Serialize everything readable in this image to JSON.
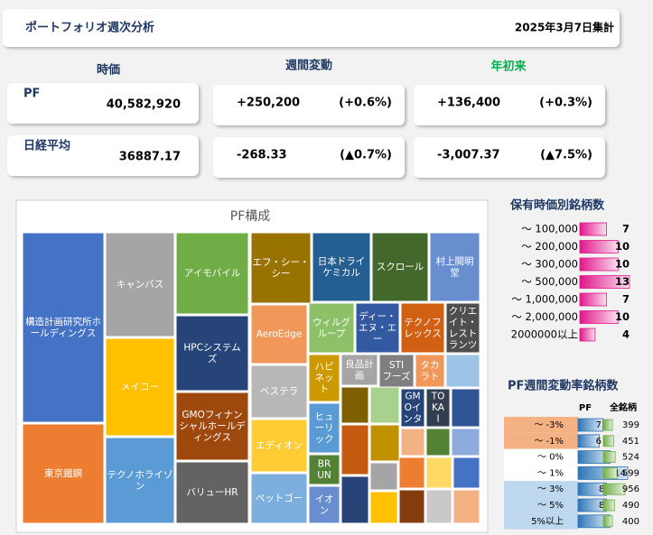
{
  "header": {
    "title": "ポートフォリオ週次分析",
    "date": "2025年3月7日集計"
  },
  "summary": {
    "headers": [
      "時価",
      "週間変動",
      "年初来"
    ],
    "rows": [
      {
        "label": "PF",
        "value": "40,582,920",
        "week": "+250,200",
        "week_pct": "(+0.6%)",
        "ytd": "+136,400",
        "ytd_pct": "(+0.3%)"
      },
      {
        "label": "日経平均",
        "value": "36887.17",
        "week": "-268.33",
        "week_pct": "(▲0.7%)",
        "ytd": "-3,007.37",
        "ytd_pct": "(▲7.5%)"
      }
    ]
  },
  "treemap": {
    "title": "PF構成",
    "tiles": [
      {
        "label": "構造計画研究所ホールディングス",
        "color": "#4472c4"
      },
      {
        "label": "東京鐵鋼",
        "color": "#ed7d31"
      },
      {
        "label": "キャンバス",
        "color": "#a5a5a5"
      },
      {
        "label": "メイコー",
        "color": "#ffc000"
      },
      {
        "label": "テクノホライゾン",
        "color": "#5b9bd5"
      },
      {
        "label": "アイモバイル",
        "color": "#70ad47"
      },
      {
        "label": "HPCシステムズ",
        "color": "#264478"
      },
      {
        "label": "GMOフィナンシャルホールディングス",
        "color": "#9e480e"
      },
      {
        "label": "バリューHR",
        "color": "#636363"
      },
      {
        "label": "エフ・シー・シー",
        "color": "#997300"
      },
      {
        "label": "AeroEdge",
        "color": "#f1975a"
      },
      {
        "label": "ベステラ",
        "color": "#b7b7b7"
      },
      {
        "label": "エディオン",
        "color": "#ffcd33"
      },
      {
        "label": "ペットゴー",
        "color": "#7cafdd"
      },
      {
        "label": "日本ドライケミカル",
        "color": "#255e91"
      },
      {
        "label": "スクロール",
        "color": "#43682b"
      },
      {
        "label": "村上開明堂",
        "color": "#698ed0"
      },
      {
        "label": "ウィルグループ",
        "color": "#8cc168"
      },
      {
        "label": "ディー・エヌ・エー",
        "color": "#335aa1"
      },
      {
        "label": "テクノフレックス",
        "color": "#d26012"
      },
      {
        "label": "クリエイト・レストランツ",
        "color": "#4e4e4e"
      },
      {
        "label": "ハピネット",
        "color": "#cc9a00"
      },
      {
        "label": "良品計画",
        "color": "#a5a5a5"
      },
      {
        "label": "STIフーズ",
        "color": "#7f7f7f"
      },
      {
        "label": "タカラトミー",
        "color": "#f1975a"
      },
      {
        "label": "ヒューリック",
        "color": "#5b9bd5"
      },
      {
        "label": "BRUNO",
        "color": "#548235"
      },
      {
        "label": "イオン",
        "color": "#698ed0"
      },
      {
        "label": "GMOインターネット",
        "color": "#264478"
      },
      {
        "label": "TOKAI",
        "color": "#333f50"
      }
    ]
  },
  "chart_data": [
    {
      "type": "hbar",
      "title": "保有時価別銘柄数",
      "categories": [
        "～ 100,000",
        "～ 200,000",
        "～ 300,000",
        "～ 500,000",
        "～ 1,000,000",
        "～ 2,000,000",
        "2000000以上"
      ],
      "values": [
        7,
        10,
        10,
        13,
        7,
        10,
        4
      ],
      "color": "#e0168a",
      "xlim": [
        0,
        13
      ]
    },
    {
      "type": "hbar-table",
      "title": "PF週間変動率銘柄数",
      "categories": [
        "～ -3%",
        "～ -1%",
        "～ 0%",
        "～ 1%",
        "～ 3%",
        "～ 5%",
        "5%以上"
      ],
      "row_colors": [
        "#f4b183",
        "#f4b183",
        "#ffffff",
        "#ffffff",
        "#bdd7ee",
        "#bdd7ee",
        "#bdd7ee"
      ],
      "series": [
        {
          "name": "PF",
          "color": "#2e75b6",
          "values": [
            7,
            6,
            9,
            14,
            8,
            8,
            9
          ],
          "xlim": [
            0,
            14
          ]
        },
        {
          "name": "全銘柄",
          "color": "#70ad47",
          "values": [
            399,
            451,
            524,
            599,
            956,
            490,
            400
          ],
          "xlim": [
            0,
            956
          ]
        }
      ]
    }
  ]
}
